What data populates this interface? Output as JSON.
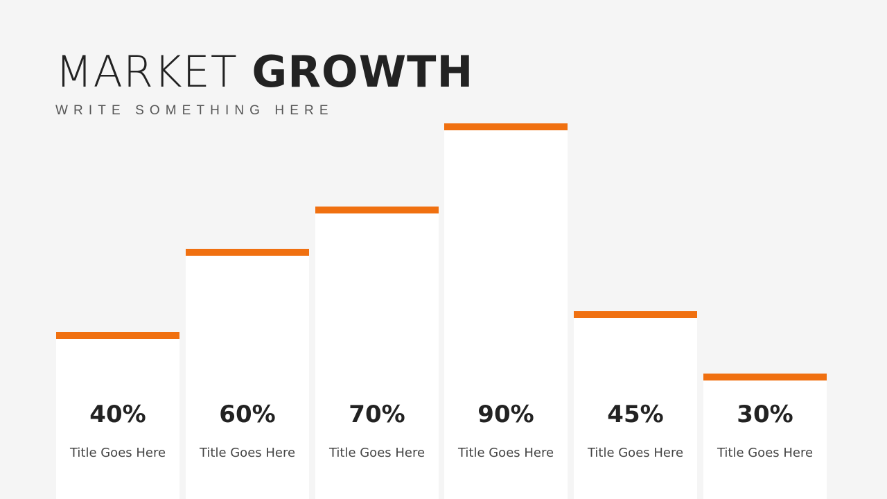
{
  "title": {
    "light": "MARKET",
    "bold": "GROWTH"
  },
  "subtitle": "WRITE SOMETHING HERE",
  "colors": {
    "accent": "#f07010",
    "bar": "#ffffff",
    "background": "#f5f5f5",
    "text": "#222222"
  },
  "chart_data": {
    "type": "bar",
    "categories": [
      "Title Goes Here",
      "Title Goes Here",
      "Title Goes Here",
      "Title Goes Here",
      "Title Goes Here",
      "Title Goes Here"
    ],
    "values": [
      40,
      60,
      70,
      90,
      45,
      30
    ],
    "value_labels": [
      "40%",
      "60%",
      "70%",
      "90%",
      "45%",
      "30%"
    ],
    "ylim": [
      0,
      100
    ],
    "grid": false
  }
}
